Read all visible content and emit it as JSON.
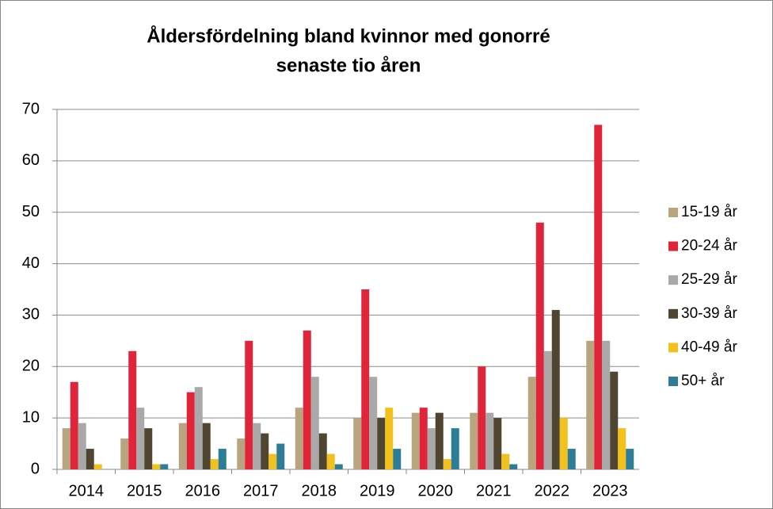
{
  "chart_data": {
    "type": "bar",
    "title": [
      "Åldersfördelning bland kvinnor med gonorré",
      "senaste tio åren"
    ],
    "categories": [
      "2014",
      "2015",
      "2016",
      "2017",
      "2018",
      "2019",
      "2020",
      "2021",
      "2022",
      "2023"
    ],
    "series": [
      {
        "name": "15-19 år",
        "color": "#b8a57f",
        "values": [
          8,
          6,
          9,
          6,
          12,
          10,
          11,
          11,
          18,
          25
        ]
      },
      {
        "name": "20-24 år",
        "color": "#e0243a",
        "values": [
          17,
          23,
          15,
          25,
          27,
          35,
          12,
          20,
          48,
          67
        ]
      },
      {
        "name": "25-29 år",
        "color": "#a9a9a9",
        "values": [
          9,
          12,
          16,
          9,
          18,
          18,
          8,
          11,
          23,
          25
        ]
      },
      {
        "name": "30-39 år",
        "color": "#4f4530",
        "values": [
          4,
          8,
          9,
          7,
          7,
          10,
          11,
          10,
          31,
          19
        ]
      },
      {
        "name": "40-49 år",
        "color": "#f2c11e",
        "values": [
          1,
          1,
          2,
          3,
          3,
          12,
          2,
          3,
          10,
          8
        ]
      },
      {
        "name": "50+ år",
        "color": "#2d7d96",
        "values": [
          0,
          1,
          4,
          5,
          1,
          4,
          8,
          1,
          4,
          4
        ]
      }
    ],
    "ylim": [
      0,
      70
    ],
    "yticks": [
      0,
      10,
      20,
      30,
      40,
      50,
      60,
      70
    ],
    "grid": true,
    "legend": "right"
  }
}
